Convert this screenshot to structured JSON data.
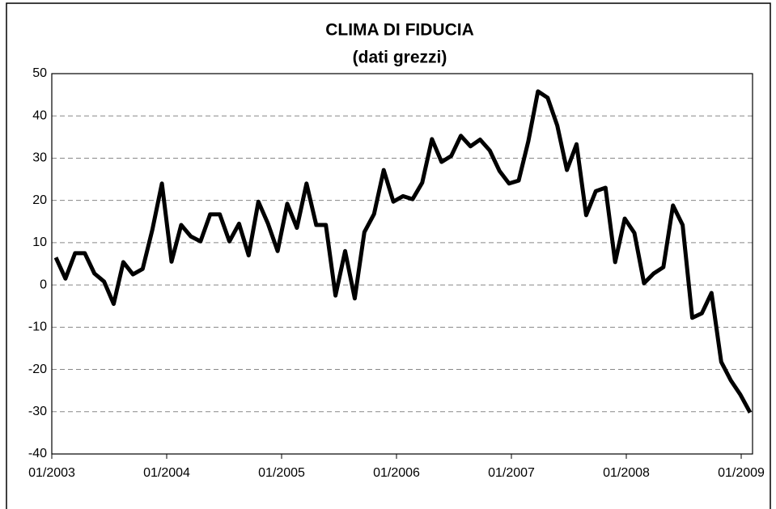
{
  "chart_data": {
    "type": "line",
    "title": "CLIMA DI FIDUCIA",
    "subtitle": "(dati grezzi)",
    "categories": [
      "01/2003",
      null,
      null,
      null,
      null,
      null,
      null,
      null,
      null,
      null,
      null,
      null,
      "01/2004",
      null,
      null,
      null,
      null,
      null,
      null,
      null,
      null,
      null,
      null,
      null,
      "01/2005",
      null,
      null,
      null,
      null,
      null,
      null,
      null,
      null,
      null,
      null,
      null,
      "01/2006",
      null,
      null,
      null,
      null,
      null,
      null,
      null,
      null,
      null,
      null,
      null,
      "01/2007",
      null,
      null,
      null,
      null,
      null,
      null,
      null,
      null,
      null,
      null,
      null,
      "01/2008",
      null,
      null,
      null,
      null,
      null,
      null,
      null,
      null,
      null,
      null,
      null,
      "01/2009"
    ],
    "series": [
      {
        "color": "#000000",
        "values": [
          6.5,
          1.5,
          7.5,
          7.5,
          2.7,
          0.8,
          -4.5,
          5.4,
          2.5,
          3.8,
          13,
          24,
          5.5,
          14.2,
          11.5,
          10.3,
          16.7,
          16.7,
          10.3,
          14.5,
          7,
          19.7,
          14.5,
          8,
          19.2,
          13.5,
          24,
          14.2,
          14.2,
          -2.5,
          8,
          -3.2,
          12.5,
          16.8,
          27.2,
          19.7,
          21,
          20.3,
          24.2,
          34.5,
          29.1,
          30.5,
          35.3,
          32.8,
          34.4,
          31.8,
          27,
          24,
          24.7,
          34,
          45.8,
          44.3,
          37.7,
          27.2,
          33.3,
          16.5,
          22.2,
          23,
          5.4,
          15.7,
          12.3,
          0.4,
          2.7,
          4.2,
          18.8,
          14.2,
          -7.8,
          -6.7,
          -1.9,
          -18.2,
          -22.6,
          -26,
          -30.2
        ]
      }
    ],
    "ylim": [
      -40,
      50
    ],
    "yticks": [
      -40,
      -30,
      -20,
      -10,
      0,
      10,
      20,
      30,
      40,
      50
    ],
    "grid": true
  }
}
